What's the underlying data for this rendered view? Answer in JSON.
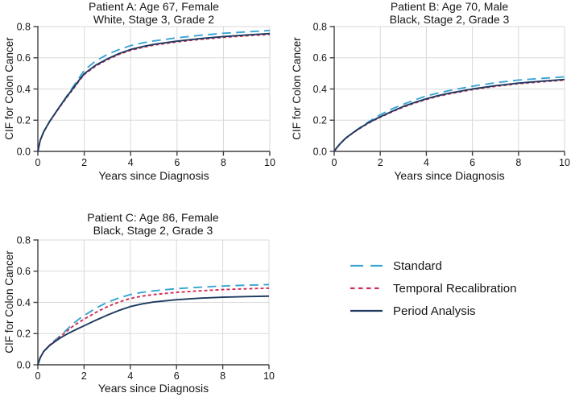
{
  "figure": {
    "background": "#FFFFFF",
    "x_axis_label": "Years since Diagnosis",
    "y_axis_label": "CIF for Colon Cancer",
    "colors": {
      "standard": "#3AA5D3",
      "temporal_recalibration": "#CE2E57",
      "period_analysis": "#1E3A60",
      "grid": "#D9D9D9",
      "axis": "#404040",
      "text": "#161616"
    }
  },
  "legend": {
    "position": "bottom-right",
    "items": [
      {
        "label": "Standard",
        "color_key": "standard",
        "line_style": "long-dash"
      },
      {
        "label": "Temporal Recalibration",
        "color_key": "temporal_recalibration",
        "line_style": "short-dash"
      },
      {
        "label": "Period Analysis",
        "color_key": "period_analysis",
        "line_style": "solid"
      }
    ]
  },
  "chart_data": [
    {
      "id": "patient-a",
      "type": "line",
      "title_line1": "Patient A: Age 67, Female",
      "title_line2": "White, Stage 3, Grade 2",
      "xlabel": "Years since Diagnosis",
      "ylabel": "CIF for Colon Cancer",
      "xlim": [
        0,
        10
      ],
      "ylim": [
        0,
        0.8
      ],
      "xticks": [
        0,
        2,
        4,
        6,
        8,
        10
      ],
      "xtick_labels": [
        "0",
        "2",
        "4",
        "6",
        "8",
        "10"
      ],
      "yticks": [
        0,
        0.2,
        0.4,
        0.6,
        0.8
      ],
      "ytick_labels": [
        "0.0",
        "0.2",
        "0.4",
        "0.6",
        "0.8"
      ],
      "grid": true,
      "x": [
        0,
        0.1,
        0.25,
        0.5,
        0.75,
        1,
        1.25,
        1.5,
        1.75,
        2,
        2.5,
        3,
        3.5,
        4,
        4.5,
        5,
        6,
        7,
        8,
        9,
        10
      ],
      "series": [
        {
          "name": "Standard",
          "color_key": "standard",
          "line_style": "long-dash",
          "values": [
            0,
            0.07,
            0.125,
            0.19,
            0.245,
            0.3,
            0.355,
            0.41,
            0.465,
            0.52,
            0.58,
            0.622,
            0.653,
            0.678,
            0.695,
            0.708,
            0.728,
            0.744,
            0.757,
            0.766,
            0.775
          ]
        },
        {
          "name": "Temporal Recalibration",
          "color_key": "temporal_recalibration",
          "line_style": "short-dash",
          "values": [
            0,
            0.07,
            0.125,
            0.19,
            0.243,
            0.296,
            0.347,
            0.396,
            0.446,
            0.493,
            0.548,
            0.588,
            0.622,
            0.648,
            0.666,
            0.681,
            0.702,
            0.718,
            0.731,
            0.741,
            0.75
          ]
        },
        {
          "name": "Period Analysis",
          "color_key": "period_analysis",
          "line_style": "solid",
          "values": [
            0,
            0.07,
            0.125,
            0.19,
            0.245,
            0.3,
            0.351,
            0.4,
            0.451,
            0.498,
            0.553,
            0.593,
            0.627,
            0.653,
            0.671,
            0.686,
            0.707,
            0.723,
            0.736,
            0.746,
            0.755
          ]
        }
      ]
    },
    {
      "id": "patient-b",
      "type": "line",
      "title_line1": "Patient B: Age 70, Male",
      "title_line2": "Black, Stage 2, Grade 3",
      "xlabel": "Years since Diagnosis",
      "ylabel": "CIF for Colon Cancer",
      "xlim": [
        0,
        10
      ],
      "ylim": [
        0,
        0.8
      ],
      "xticks": [
        0,
        2,
        4,
        6,
        8,
        10
      ],
      "xtick_labels": [
        "0",
        "2",
        "4",
        "6",
        "8",
        "10"
      ],
      "yticks": [
        0,
        0.2,
        0.4,
        0.6,
        0.8
      ],
      "ytick_labels": [
        "0.0",
        "0.2",
        "0.4",
        "0.6",
        "0.8"
      ],
      "grid": true,
      "x": [
        0,
        0.1,
        0.25,
        0.5,
        0.75,
        1,
        1.25,
        1.5,
        1.75,
        2,
        2.5,
        3,
        3.5,
        4,
        4.5,
        5,
        6,
        7,
        8,
        9,
        10
      ],
      "series": [
        {
          "name": "Standard",
          "color_key": "standard",
          "line_style": "long-dash",
          "values": [
            0,
            0.022,
            0.048,
            0.085,
            0.113,
            0.14,
            0.165,
            0.19,
            0.213,
            0.235,
            0.272,
            0.302,
            0.33,
            0.355,
            0.374,
            0.39,
            0.418,
            0.44,
            0.457,
            0.468,
            0.478
          ]
        },
        {
          "name": "Temporal Recalibration",
          "color_key": "temporal_recalibration",
          "line_style": "short-dash",
          "values": [
            0,
            0.022,
            0.048,
            0.084,
            0.111,
            0.137,
            0.16,
            0.182,
            0.201,
            0.219,
            0.253,
            0.284,
            0.31,
            0.333,
            0.353,
            0.369,
            0.396,
            0.417,
            0.434,
            0.446,
            0.457
          ]
        },
        {
          "name": "Period Analysis",
          "color_key": "period_analysis",
          "line_style": "solid",
          "values": [
            0,
            0.022,
            0.048,
            0.085,
            0.113,
            0.139,
            0.162,
            0.185,
            0.204,
            0.222,
            0.256,
            0.288,
            0.314,
            0.337,
            0.357,
            0.373,
            0.4,
            0.421,
            0.438,
            0.45,
            0.461
          ]
        }
      ]
    },
    {
      "id": "patient-c",
      "type": "line",
      "title_line1": "Patient C: Age 86, Female",
      "title_line2": "Black, Stage 2, Grade 3",
      "xlabel": "Years since Diagnosis",
      "ylabel": "CIF for Colon Cancer",
      "xlim": [
        0,
        10
      ],
      "ylim": [
        0,
        0.8
      ],
      "xticks": [
        0,
        2,
        4,
        6,
        8,
        10
      ],
      "xtick_labels": [
        "0",
        "2",
        "4",
        "6",
        "8",
        "10"
      ],
      "yticks": [
        0,
        0.2,
        0.4,
        0.6,
        0.8
      ],
      "ytick_labels": [
        "0.0",
        "0.2",
        "0.4",
        "0.6",
        "0.8"
      ],
      "grid": true,
      "x": [
        0,
        0.1,
        0.25,
        0.5,
        0.75,
        1,
        1.25,
        1.5,
        1.75,
        2,
        2.5,
        3,
        3.5,
        4,
        4.5,
        5,
        6,
        7,
        8,
        9,
        10
      ],
      "series": [
        {
          "name": "Standard",
          "color_key": "standard",
          "line_style": "long-dash",
          "values": [
            0,
            0.045,
            0.085,
            0.125,
            0.158,
            0.19,
            0.225,
            0.26,
            0.29,
            0.315,
            0.362,
            0.4,
            0.428,
            0.45,
            0.464,
            0.474,
            0.488,
            0.497,
            0.505,
            0.51,
            0.514
          ]
        },
        {
          "name": "Temporal Recalibration",
          "color_key": "temporal_recalibration",
          "line_style": "short-dash",
          "values": [
            0,
            0.045,
            0.085,
            0.125,
            0.155,
            0.185,
            0.215,
            0.245,
            0.27,
            0.292,
            0.335,
            0.372,
            0.402,
            0.425,
            0.44,
            0.45,
            0.464,
            0.474,
            0.482,
            0.487,
            0.491
          ]
        },
        {
          "name": "Period Analysis",
          "color_key": "period_analysis",
          "line_style": "solid",
          "values": [
            0,
            0.045,
            0.085,
            0.122,
            0.15,
            0.175,
            0.196,
            0.215,
            0.233,
            0.25,
            0.285,
            0.318,
            0.348,
            0.373,
            0.39,
            0.402,
            0.417,
            0.427,
            0.433,
            0.437,
            0.44
          ]
        }
      ]
    }
  ]
}
